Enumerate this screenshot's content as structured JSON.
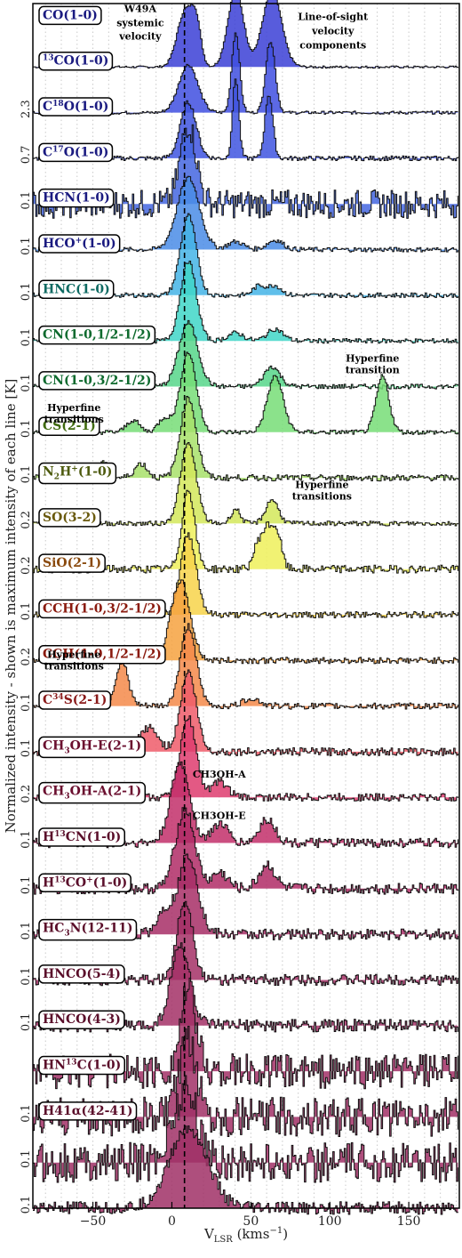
{
  "chart_data": {
    "type": "line",
    "subtype": "stacked-spectra",
    "xlabel": "V",
    "xlabel_sub": "LSR",
    "xlabel_unit": "(kms",
    "xlabel_unit_sup": "−1",
    "xlabel_unit_close": ")",
    "ylabel": "Normalized intensity - shown is maximum intensity of each line [K]",
    "xlim": [
      -88,
      182
    ],
    "xticks": [
      -50,
      0,
      50,
      100,
      150
    ],
    "xtick_labels": [
      "−50",
      "0",
      "50",
      "100",
      "150"
    ],
    "systemic_velocity": 8,
    "grid": "vertical dotted",
    "series": [
      {
        "name": "CO(1-0)",
        "html": "CO(1-0)",
        "color": "#3b3fd6",
        "label_color": "#1a1a80",
        "max_K": "",
        "peaks": [
          [
            8,
            0.7,
            5
          ],
          [
            15,
            0.45,
            3
          ],
          [
            40,
            0.95,
            5
          ],
          [
            63,
            0.95,
            6
          ]
        ],
        "noise": 0.015
      },
      {
        "name": "13CO(1-0)",
        "html": "<tspan dy='-5' font-size='9'>13</tspan><tspan dy='5'>CO(1-0)</tspan>",
        "color": "#3f4fe0",
        "label_color": "#1a1a80",
        "max_K": "2.3",
        "peaks": [
          [
            10,
            0.6,
            6
          ],
          [
            40,
            1.0,
            2.5
          ],
          [
            62,
            0.9,
            3
          ]
        ],
        "noise": 0.02
      },
      {
        "name": "C18O(1-0)",
        "html": "C<tspan dy='-5' font-size='9'>18</tspan><tspan dy='5'>O(1-0)</tspan>",
        "color": "#3f55e0",
        "label_color": "#1a1a80",
        "max_K": "0.7",
        "peaks": [
          [
            10,
            0.7,
            5
          ],
          [
            40,
            1.0,
            2
          ],
          [
            61,
            0.8,
            2.5
          ]
        ],
        "noise": 0.03
      },
      {
        "name": "C17O(1-0)",
        "html": "C<tspan dy='-5' font-size='9'>17</tspan><tspan dy='5'>O(1-0)</tspan>",
        "color": "#4466e0",
        "label_color": "#1a1a80",
        "max_K": "0.1",
        "peaks": [
          [
            10,
            1.0,
            5
          ]
        ],
        "noise": 0.18
      },
      {
        "name": "HCN(1-0)",
        "html": "HCN(1-0)",
        "color": "#4a8ce6",
        "label_color": "#1a1a80",
        "max_K": "0.1",
        "peaks": [
          [
            10,
            0.9,
            7
          ],
          [
            40,
            0.1,
            5
          ],
          [
            65,
            0.12,
            5
          ]
        ],
        "noise": 0.03
      },
      {
        "name": "HCO+(1-0)",
        "html": "HCO<tspan dy='-5' font-size='9'>+</tspan><tspan dy='5'>(1-0)</tspan>",
        "color": "#44b4e6",
        "label_color": "#1a1a80",
        "max_K": "0.1",
        "peaks": [
          [
            10,
            1.0,
            5
          ],
          [
            55,
            0.12,
            4
          ],
          [
            65,
            0.12,
            4
          ]
        ],
        "noise": 0.03
      },
      {
        "name": "HNC(1-0)",
        "html": "HNC(1-0)",
        "color": "#3fd6c8",
        "label_color": "#0e6a62",
        "max_K": "0.1",
        "peaks": [
          [
            10,
            1.0,
            5
          ],
          [
            40,
            0.1,
            5
          ],
          [
            65,
            0.15,
            5
          ]
        ],
        "noise": 0.03
      },
      {
        "name": "CN(1-0,1/2-1/2)",
        "html": "CN(1-0,1/2-1/2)",
        "color": "#56d68a",
        "label_color": "#0e6a2e",
        "max_K": "0.1",
        "peaks": [
          [
            10,
            0.8,
            6
          ],
          [
            63,
            0.25,
            5
          ]
        ],
        "noise": 0.03
      },
      {
        "name": "CN(1-0,3/2-1/2)",
        "html": "CN(1-0,3/2-1/2)",
        "color": "#77dd77",
        "label_color": "#0e6a2e",
        "max_K": "0.1",
        "peaks": [
          [
            10,
            1.0,
            5
          ],
          [
            -25,
            0.15,
            4
          ],
          [
            -5,
            0.18,
            4
          ],
          [
            65,
            0.7,
            5
          ],
          [
            133,
            0.7,
            4
          ]
        ],
        "noise": 0.03
      },
      {
        "name": "CS(2-1)",
        "html": "CS(2-1)",
        "color": "#a8e06a",
        "label_color": "#3f6a0e",
        "max_K": "0.1",
        "peaks": [
          [
            10,
            1.0,
            5
          ],
          [
            -45,
            0.2,
            4
          ],
          [
            -20,
            0.18,
            4
          ]
        ],
        "noise": 0.04
      },
      {
        "name": "N2H+(1-0)",
        "html": "N<tspan dy='4' font-size='9'>2</tspan><tspan dy='-4'>H</tspan><tspan dy='-5' font-size='9'>+</tspan><tspan dy='5'>(1-0)</tspan>",
        "color": "#d3e85a",
        "label_color": "#4d5a0e",
        "max_K": "0.2",
        "peaks": [
          [
            10,
            1.0,
            5
          ],
          [
            40,
            0.18,
            3
          ],
          [
            63,
            0.3,
            4
          ]
        ],
        "noise": 0.03
      },
      {
        "name": "SO(3-2)",
        "html": "SO(3-2)",
        "color": "#eef05a",
        "label_color": "#6a5a0e",
        "max_K": "0.2",
        "peaks": [
          [
            10,
            1.0,
            4
          ],
          [
            54,
            0.3,
            3
          ],
          [
            60,
            0.45,
            3
          ],
          [
            66,
            0.45,
            3
          ]
        ],
        "noise": 0.05
      },
      {
        "name": "SiO(2-1)",
        "html": "SiO(2-1)",
        "color": "#f7d44a",
        "label_color": "#8a4a0e",
        "max_K": "0.1",
        "peaks": [
          [
            10,
            1.0,
            5
          ]
        ],
        "noise": 0.04
      },
      {
        "name": "CCH(1-0,3/2-1/2)",
        "html": "CCH(1-0,3/2-1/2)",
        "color": "#f6a240",
        "label_color": "#8a1a0e",
        "max_K": "0.2",
        "peaks": [
          [
            5,
            1.0,
            6
          ]
        ],
        "noise": 0.04
      },
      {
        "name": "CCH(1-0,1/2-1/2)",
        "html": "CCH(1-0,1/2-1/2)",
        "color": "#f58a4a",
        "label_color": "#8a1a0e",
        "max_K": "0.1",
        "peaks": [
          [
            10,
            1.0,
            5
          ],
          [
            -32,
            0.55,
            4
          ],
          [
            50,
            0.1,
            5
          ]
        ],
        "noise": 0.04
      },
      {
        "name": "C34S(2-1)",
        "html": "C<tspan dy='-5' font-size='9'>34</tspan><tspan dy='5'>S(2-1)</tspan>",
        "color": "#ee5c6a",
        "label_color": "#8a1a1a",
        "max_K": "0.1",
        "peaks": [
          [
            10,
            1.0,
            5
          ],
          [
            -15,
            0.3,
            6
          ]
        ],
        "noise": 0.05
      },
      {
        "name": "CH3OH-E(2-1)",
        "html": "CH<tspan dy='4' font-size='9'>3</tspan><tspan dy='-4'>OH-E(2-1)</tspan>",
        "color": "#de3c6e",
        "label_color": "#6a0e2e",
        "max_K": "0.2",
        "peaks": [
          [
            10,
            1.0,
            5
          ],
          [
            30,
            0.2,
            5
          ]
        ],
        "noise": 0.05
      },
      {
        "name": "CH3OH-A(2-1)",
        "html": "CH<tspan dy='4' font-size='9'>3</tspan><tspan dy='-4'>OH-A(2-1)</tspan>",
        "color": "#c22f6a",
        "label_color": "#6a0e2e",
        "max_K": "0.1",
        "peaks": [
          [
            5,
            1.0,
            6
          ],
          [
            30,
            0.25,
            5
          ],
          [
            60,
            0.3,
            5
          ]
        ],
        "noise": 0.06
      },
      {
        "name": "H13CN(1-0)",
        "html": "H<tspan dy='-5' font-size='9'>13</tspan><tspan dy='5'>CN(1-0)</tspan>",
        "color": "#b02c66",
        "label_color": "#5a0e2a",
        "max_K": "0.1",
        "peaks": [
          [
            8,
            1.0,
            6
          ],
          [
            30,
            0.2,
            5
          ],
          [
            60,
            0.3,
            5
          ]
        ],
        "noise": 0.07
      },
      {
        "name": "H13CO+(1-0)",
        "html": "H<tspan dy='-5' font-size='9'>13</tspan><tspan dy='5'>CO</tspan><tspan dy='-5' font-size='9'>+</tspan><tspan dy='5'>(1-0)</tspan>",
        "color": "#a72e66",
        "label_color": "#5a0e2a",
        "max_K": "0.1",
        "peaks": [
          [
            10,
            1.0,
            6
          ],
          [
            -5,
            0.3,
            5
          ]
        ],
        "noise": 0.07
      },
      {
        "name": "HC3N(12-11)",
        "html": "HC<tspan dy='4' font-size='9'>3</tspan><tspan dy='-4'>N(12-11)</tspan>",
        "color": "#a53066",
        "label_color": "#5a0e2a",
        "max_K": "0.1",
        "peaks": [
          [
            8,
            1.0,
            5
          ]
        ],
        "noise": 0.07
      },
      {
        "name": "HNCO(5-4)",
        "html": "HNCO(5-4)",
        "color": "#a33066",
        "label_color": "#5a0e2a",
        "max_K": "0.1",
        "peaks": [
          [
            5,
            1.0,
            6
          ]
        ],
        "noise": 0.08
      },
      {
        "name": "HNCO(4-3)",
        "html": "HNCO(4-3)",
        "color": "#a23066",
        "label_color": "#5a0e2a",
        "max_K": "",
        "peaks": [
          [
            10,
            1.0,
            5
          ]
        ],
        "noise": 0.22
      },
      {
        "name": "HN13C(1-0)",
        "html": "HN<tspan dy='-5' font-size='9'>13</tspan><tspan dy='5'>C(1-0)</tspan>",
        "color": "#a13066",
        "label_color": "#5a0e2a",
        "max_K": "0.1",
        "peaks": [
          [
            10,
            0.9,
            6
          ]
        ],
        "noise": 0.25
      },
      {
        "name": "H41α(42-41)",
        "html": "H41α(42-41)",
        "color": "#a03066",
        "label_color": "#5a0e2a",
        "max_K": "0.1",
        "peaks": [
          [
            8,
            0.9,
            8
          ]
        ],
        "noise": 0.25
      },
      {
        "name": "",
        "html": "",
        "color": "#a03066",
        "label_color": "#5a0e2a",
        "max_K": "0.1",
        "peaks": [
          [
            10,
            1.0,
            12
          ]
        ],
        "noise": 0.08
      }
    ],
    "annotations": [
      {
        "text": "W49A",
        "x": -20,
        "row": 0,
        "dy": -62
      },
      {
        "text": "systemic",
        "x": -20,
        "row": 0,
        "dy": -46
      },
      {
        "text": "velocity",
        "x": -20,
        "row": 0,
        "dy": -31
      },
      {
        "text": "Line-of-sight",
        "x": 102,
        "row": 0,
        "dy": -53
      },
      {
        "text": "velocity",
        "x": 102,
        "row": 0,
        "dy": -37
      },
      {
        "text": "components",
        "x": 102,
        "row": 0,
        "dy": -21
      },
      {
        "text": "Hyperfine",
        "x": 127,
        "row": 7,
        "dy": -28
      },
      {
        "text": "transition",
        "x": 127,
        "row": 7,
        "dy": -15
      },
      {
        "text": "Hyperfine",
        "x": -62,
        "row": 8,
        "dy": -24
      },
      {
        "text": "transitions",
        "x": -62,
        "row": 8,
        "dy": -11
      },
      {
        "text": "Hyperfine",
        "x": 95,
        "row": 10,
        "dy": -40
      },
      {
        "text": "transitions",
        "x": 95,
        "row": 10,
        "dy": -27
      },
      {
        "text": "Hyperfine",
        "x": -62,
        "row": 14,
        "dy": -54
      },
      {
        "text": "transitions",
        "x": -62,
        "row": 14,
        "dy": -41
      },
      {
        "text": "CH3OH-A",
        "x": 30,
        "row": 16,
        "dy": -22
      },
      {
        "text": "CH3OH-E",
        "x": 30,
        "row": 17,
        "dy": -27
      }
    ]
  }
}
